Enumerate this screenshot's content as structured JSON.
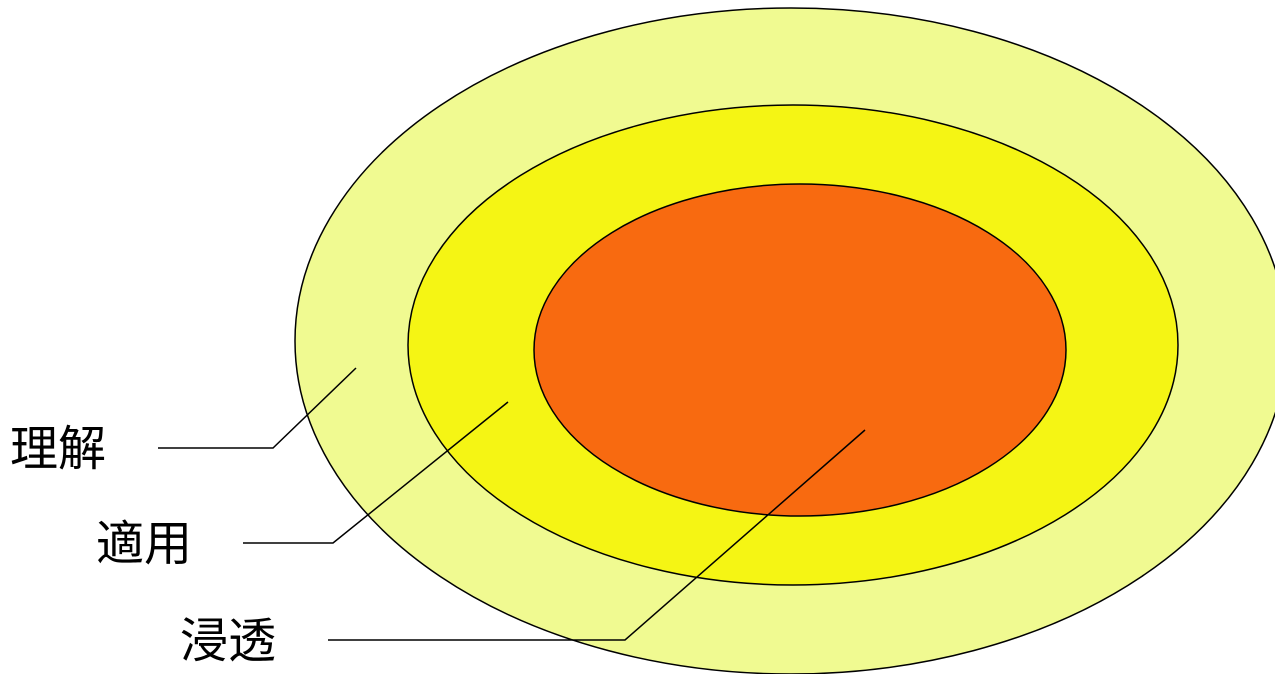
{
  "labels": {
    "outer": "理解",
    "middle": "適用",
    "inner": "浸透"
  },
  "colors": {
    "outer_fill": "#F0FA91",
    "middle_fill": "#F5F514",
    "inner_fill": "#F86A10",
    "stroke": "#000000",
    "text": "#000000"
  }
}
